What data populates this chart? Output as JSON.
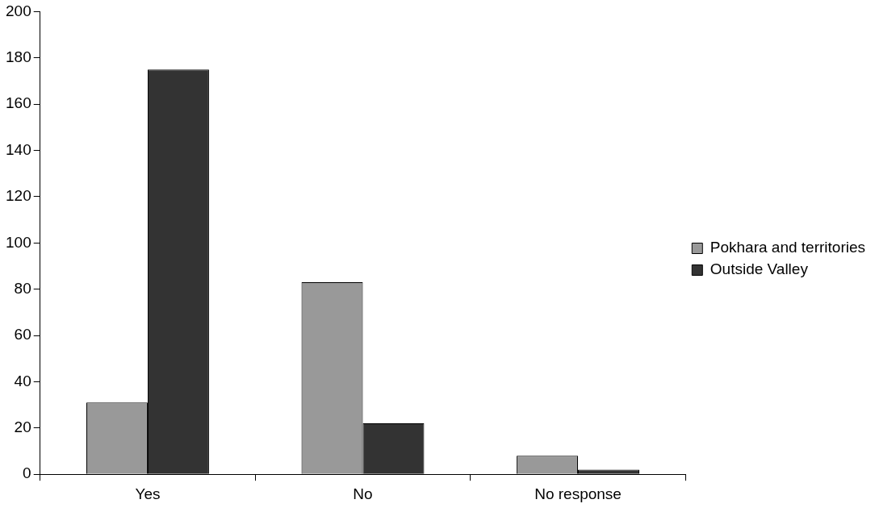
{
  "chart_data": {
    "type": "bar",
    "categories": [
      "Yes",
      "No",
      "No response"
    ],
    "series": [
      {
        "name": "Pokhara and territories",
        "color": "#999999",
        "values": [
          31,
          83,
          8
        ]
      },
      {
        "name": "Outside Valley",
        "color": "#333333",
        "values": [
          175,
          22,
          2
        ]
      }
    ],
    "ylim": [
      0,
      200
    ],
    "yticks": [
      0,
      20,
      40,
      60,
      80,
      100,
      120,
      140,
      160,
      180,
      200
    ],
    "grid": false,
    "legend": "right"
  }
}
